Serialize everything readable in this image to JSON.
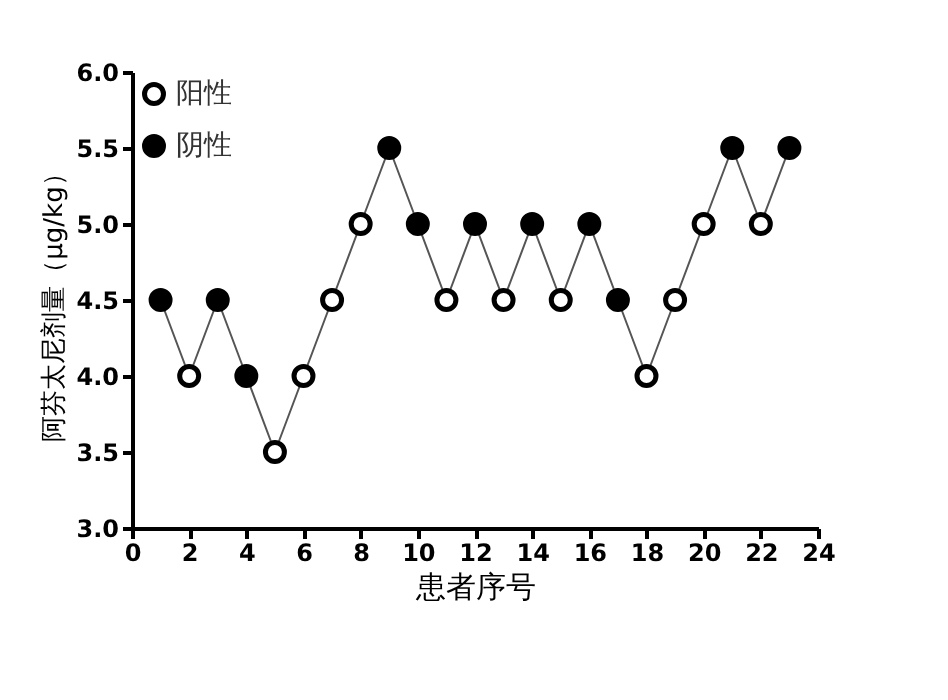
{
  "chart_data": {
    "type": "scatter",
    "xlabel": "患者序号",
    "ylabel": "阿芬太尼剂量（μg/kg）",
    "x": [
      1,
      2,
      3,
      4,
      5,
      6,
      7,
      8,
      9,
      10,
      11,
      12,
      13,
      14,
      15,
      16,
      17,
      18,
      19,
      20,
      21,
      22,
      23
    ],
    "series": [
      {
        "type": "line",
        "color": "#555555",
        "line_style": "solid",
        "values": [
          4.5,
          4.0,
          4.5,
          4.0,
          3.5,
          4.0,
          4.5,
          5.0,
          5.5,
          5.0,
          4.5,
          5.0,
          4.5,
          5.0,
          4.5,
          5.0,
          4.5,
          4.0,
          4.5,
          5.0,
          5.5,
          5.0,
          5.5
        ]
      },
      {
        "name": "阳性",
        "color": "#000000",
        "marker": "circle",
        "values": [
          null,
          4.0,
          null,
          null,
          3.5,
          4.0,
          4.5,
          5.0,
          null,
          null,
          4.5,
          null,
          4.5,
          null,
          4.5,
          null,
          null,
          4.0,
          4.5,
          5.0,
          null,
          5.0,
          null
        ]
      },
      {
        "name": "阴性",
        "color": "#000000",
        "marker": "circle",
        "values": [
          4.5,
          null,
          4.5,
          4.0,
          null,
          null,
          null,
          null,
          5.5,
          5.0,
          null,
          5.0,
          null,
          5.0,
          null,
          5.0,
          4.5,
          null,
          null,
          null,
          5.5,
          null,
          5.5
        ]
      }
    ],
    "xlim": [
      0,
      24
    ],
    "xticks": [
      0,
      2,
      4,
      6,
      8,
      10,
      12,
      14,
      16,
      18,
      20,
      22,
      24
    ],
    "ylim": [
      3.0,
      6.0
    ],
    "yticks": [
      {
        "value": 3.0,
        "label": "3.0"
      },
      {
        "value": 3.5,
        "label": "3.5"
      },
      {
        "value": 4.0,
        "label": "4.0"
      },
      {
        "value": 4.5,
        "label": "4.5"
      },
      {
        "value": 5.0,
        "label": "5.0"
      },
      {
        "value": 5.5,
        "label": "5.5"
      },
      {
        "value": 6.0,
        "label": "6.0"
      }
    ],
    "grid": false,
    "legend": "top left"
  }
}
